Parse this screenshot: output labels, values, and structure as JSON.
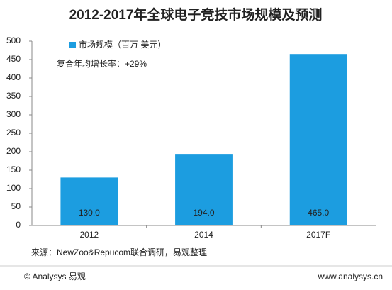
{
  "chart_data": {
    "type": "bar",
    "title": "2012-2017年全球电子竞技市场规模及预测",
    "legend": "市场规模（百万 美元）",
    "annotation": "复合年均增长率：+29%",
    "source": "来源：NewZoo&Repucom联合调研，易观整理",
    "categories": [
      "2012",
      "2014",
      "2017F"
    ],
    "values": [
      130,
      194,
      465
    ],
    "value_labels": [
      "130.0",
      "194.0",
      "465.0"
    ],
    "color": "#1c9de0",
    "ylim": [
      0,
      500
    ],
    "yticks": [
      0,
      50,
      100,
      150,
      200,
      250,
      300,
      350,
      400,
      450,
      500
    ],
    "grid": false
  },
  "footer": {
    "left": "© Analysys 易观",
    "right": "www.analysys.cn"
  }
}
